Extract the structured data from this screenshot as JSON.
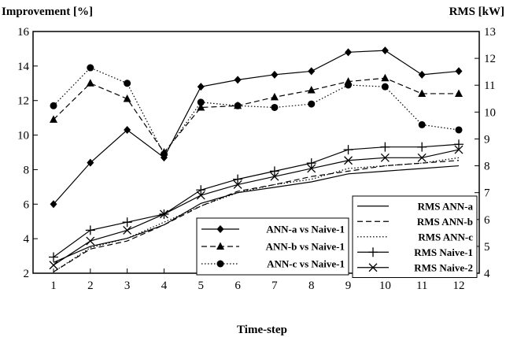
{
  "chart_data": {
    "type": "line",
    "x": [
      1,
      2,
      3,
      4,
      5,
      6,
      7,
      8,
      9,
      10,
      11,
      12
    ],
    "xlabel": "Time-step",
    "ylabel_left": "Improvement [%]",
    "ylabel_right": "RMS [kW]",
    "ylim_left": [
      2,
      16
    ],
    "yticks_left": [
      2,
      4,
      6,
      8,
      10,
      12,
      14,
      16
    ],
    "ylim_right": [
      4,
      13
    ],
    "yticks_right": [
      4,
      5,
      6,
      7,
      8,
      9,
      10,
      11,
      12,
      13
    ],
    "grid": false,
    "series": [
      {
        "name": "ANN-a vs Naive-1",
        "axis": "left",
        "marker": "diamond",
        "dash": "solid",
        "values": [
          6.0,
          8.4,
          10.3,
          8.7,
          12.8,
          13.2,
          13.5,
          13.7,
          14.8,
          14.9,
          13.5,
          13.7
        ]
      },
      {
        "name": "ANN-b vs Naive-1",
        "axis": "left",
        "marker": "triangle",
        "dash": "dashed",
        "values": [
          10.9,
          13.0,
          12.1,
          9.0,
          11.6,
          11.7,
          12.2,
          12.6,
          13.1,
          13.3,
          12.4,
          12.4
        ]
      },
      {
        "name": "ANN-c vs Naive-1",
        "axis": "left",
        "marker": "circle",
        "dash": "dotted",
        "values": [
          11.7,
          13.9,
          13.0,
          8.9,
          11.9,
          11.7,
          11.6,
          11.8,
          12.9,
          12.8,
          10.6,
          10.3
        ]
      },
      {
        "name": "RMS ANN-a",
        "axis": "right",
        "marker": "none",
        "dash": "solid",
        "values": [
          4.4,
          5.0,
          5.3,
          5.8,
          6.6,
          7.0,
          7.2,
          7.4,
          7.7,
          7.8,
          7.9,
          8.0
        ]
      },
      {
        "name": "RMS ANN-b",
        "axis": "right",
        "marker": "none",
        "dash": "dashed",
        "values": [
          4.05,
          4.9,
          5.2,
          5.8,
          6.5,
          7.05,
          7.3,
          7.6,
          7.8,
          8.0,
          8.1,
          8.2
        ]
      },
      {
        "name": "RMS ANN-c",
        "axis": "right",
        "marker": "none",
        "dash": "dotted",
        "values": [
          4.05,
          4.95,
          5.3,
          5.9,
          6.5,
          7.0,
          7.3,
          7.5,
          7.9,
          8.0,
          8.1,
          8.3
        ]
      },
      {
        "name": "RMS Naive-1",
        "axis": "right",
        "marker": "plus",
        "dash": "solid",
        "values": [
          4.6,
          5.6,
          5.9,
          6.2,
          7.1,
          7.5,
          7.8,
          8.1,
          8.6,
          8.7,
          8.7,
          8.8
        ]
      },
      {
        "name": "RMS Naive-2",
        "axis": "right",
        "marker": "x",
        "dash": "solid",
        "values": [
          4.3,
          5.2,
          5.6,
          6.2,
          6.9,
          7.3,
          7.6,
          7.9,
          8.2,
          8.3,
          8.3,
          8.6
        ]
      }
    ],
    "legends": [
      {
        "placement": "bottom-center",
        "entries": [
          "ANN-a vs Naive-1",
          "ANN-b vs Naive-1",
          "ANN-c vs Naive-1"
        ]
      },
      {
        "placement": "bottom-right",
        "entries": [
          "RMS ANN-a",
          "RMS ANN-b",
          "RMS ANN-c",
          "RMS Naive-1",
          "RMS Naive-2"
        ]
      }
    ]
  }
}
